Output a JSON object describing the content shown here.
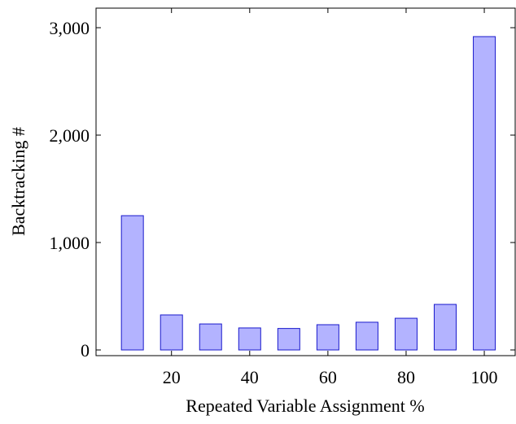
{
  "chart_data": {
    "type": "bar",
    "x": [
      10,
      20,
      30,
      40,
      50,
      60,
      70,
      80,
      90,
      100
    ],
    "values": [
      1250,
      326,
      242,
      205,
      200,
      235,
      258,
      295,
      424,
      2917
    ],
    "color": "#b3b3ff",
    "edge_color": "#1a1acc",
    "xlabel": "Repeated Variable Assignment %",
    "ylabel": "Backtracking #",
    "xlim": [
      0.7,
      107.9
    ],
    "xticks": [
      20,
      40,
      60,
      80,
      100
    ],
    "ylim": [
      -53,
      3182
    ],
    "yticks": [
      0,
      {
        "value": 1000,
        "label": "1,000"
      },
      {
        "value": 2000,
        "label": "2,000"
      },
      {
        "value": 3000,
        "label": "3,000"
      }
    ]
  }
}
